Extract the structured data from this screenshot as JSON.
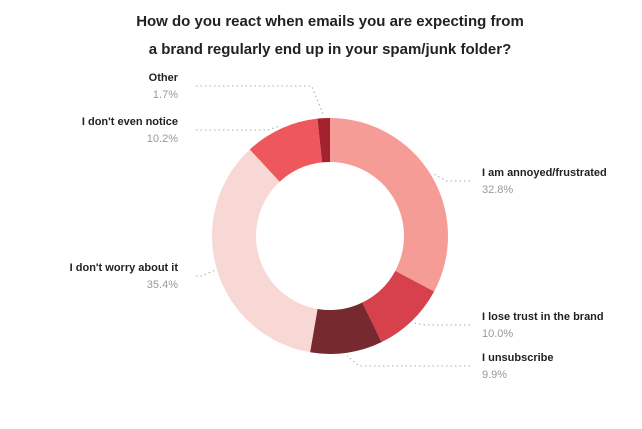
{
  "chart_data": {
    "type": "donut",
    "title": [
      "How do you react when emails you are expecting from",
      "a brand regularly end up in your spam/junk folder?"
    ],
    "categories": [
      "I am annoyed/frustrated",
      "I lose trust in the brand",
      "I unsubscribe",
      "I don't worry about it",
      "I don't even notice",
      "Other"
    ],
    "values": [
      32.8,
      10.0,
      9.9,
      35.4,
      10.2,
      1.7
    ],
    "value_labels": [
      "32.8%",
      "10.0%",
      "9.9%",
      "35.4%",
      "10.2%",
      "1.7%"
    ],
    "colors": [
      "#f59c96",
      "#d7414c",
      "#772930",
      "#f7d8d4",
      "#ee585c",
      "#a3222e"
    ]
  }
}
